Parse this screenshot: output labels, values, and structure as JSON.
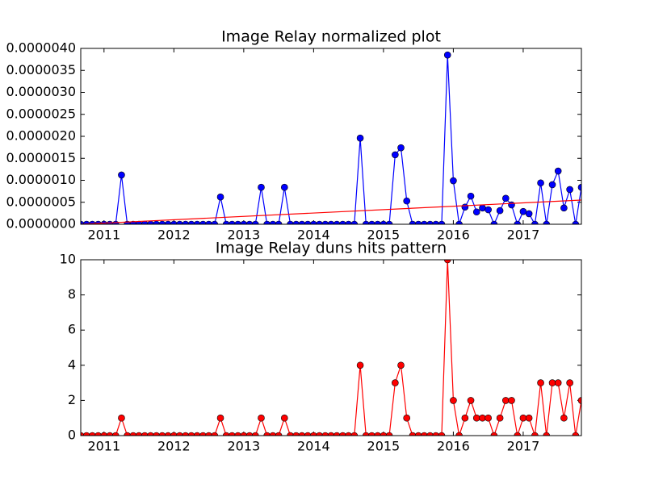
{
  "chart_data": [
    {
      "type": "line",
      "title": "Image Relay normalized plot",
      "x": [
        2010.667,
        2010.75,
        2010.833,
        2010.917,
        2011.0,
        2011.083,
        2011.167,
        2011.25,
        2011.333,
        2011.417,
        2011.5,
        2011.583,
        2011.667,
        2011.75,
        2011.833,
        2011.917,
        2012.0,
        2012.083,
        2012.167,
        2012.25,
        2012.333,
        2012.417,
        2012.5,
        2012.583,
        2012.667,
        2012.75,
        2012.833,
        2012.917,
        2013.0,
        2013.083,
        2013.167,
        2013.25,
        2013.333,
        2013.417,
        2013.5,
        2013.583,
        2013.667,
        2013.75,
        2013.833,
        2013.917,
        2014.0,
        2014.083,
        2014.167,
        2014.25,
        2014.333,
        2014.417,
        2014.5,
        2014.583,
        2014.667,
        2014.75,
        2014.833,
        2014.917,
        2015.0,
        2015.083,
        2015.167,
        2015.25,
        2015.333,
        2015.417,
        2015.5,
        2015.583,
        2015.667,
        2015.75,
        2015.833,
        2015.917,
        2016.0,
        2016.083,
        2016.167,
        2016.25,
        2016.333,
        2016.417,
        2016.5,
        2016.583,
        2016.667,
        2016.75,
        2016.833,
        2016.917,
        2017.0,
        2017.083,
        2017.167,
        2017.25,
        2017.333,
        2017.417,
        2017.5,
        2017.583,
        2017.667,
        2017.75,
        2017.833
      ],
      "series": [
        {
          "color": "#0000ff",
          "markers": true,
          "values": [
            0,
            0,
            0,
            0,
            0,
            0,
            0,
            1.12e-06,
            0,
            0,
            0,
            0,
            0,
            0,
            0,
            0,
            0,
            0,
            0,
            0,
            0,
            0,
            0,
            0,
            6.2e-07,
            0,
            0,
            0,
            0,
            0,
            0,
            8.4e-07,
            0,
            0,
            0,
            8.4e-07,
            0,
            0,
            0,
            0,
            0,
            0,
            0,
            0,
            0,
            0,
            0,
            0,
            1.96e-06,
            0,
            0,
            0,
            0,
            0,
            1.58e-06,
            1.74e-06,
            5.3e-07,
            0,
            0,
            0,
            0,
            0,
            0,
            3.85e-06,
            9.9e-07,
            0,
            3.9e-07,
            6.4e-07,
            2.8e-07,
            3.7e-07,
            3.3e-07,
            0,
            3.1e-07,
            5.9e-07,
            4.4e-07,
            0,
            2.9e-07,
            2.4e-07,
            0,
            9.4e-07,
            0,
            9e-07,
            1.21e-06,
            3.7e-07,
            7.9e-07,
            0,
            8.4e-07
          ]
        },
        {
          "color": "#ff0000",
          "markers": false,
          "x": [
            2010.667,
            2017.833
          ],
          "values": [
            0,
            5.5e-07
          ]
        }
      ],
      "xlim": [
        2010.667,
        2017.833
      ],
      "xticks": [
        2011,
        2012,
        2013,
        2014,
        2015,
        2016,
        2017
      ],
      "ylim": [
        0,
        4e-06
      ],
      "yticks": [
        {
          "value": 0,
          "label": "0.0000000"
        },
        {
          "value": 5e-07,
          "label": "0.0000005"
        },
        {
          "value": 1e-06,
          "label": "0.0000010"
        },
        {
          "value": 1.5e-06,
          "label": "0.0000015"
        },
        {
          "value": 2e-06,
          "label": "0.0000020"
        },
        {
          "value": 2.5e-06,
          "label": "0.0000025"
        },
        {
          "value": 3e-06,
          "label": "0.0000030"
        },
        {
          "value": 3.5e-06,
          "label": "0.0000035"
        },
        {
          "value": 4e-06,
          "label": "0.0000040"
        }
      ]
    },
    {
      "type": "line",
      "title": "Image Relay duns hits pattern",
      "x": [
        2010.667,
        2010.75,
        2010.833,
        2010.917,
        2011.0,
        2011.083,
        2011.167,
        2011.25,
        2011.333,
        2011.417,
        2011.5,
        2011.583,
        2011.667,
        2011.75,
        2011.833,
        2011.917,
        2012.0,
        2012.083,
        2012.167,
        2012.25,
        2012.333,
        2012.417,
        2012.5,
        2012.583,
        2012.667,
        2012.75,
        2012.833,
        2012.917,
        2013.0,
        2013.083,
        2013.167,
        2013.25,
        2013.333,
        2013.417,
        2013.5,
        2013.583,
        2013.667,
        2013.75,
        2013.833,
        2013.917,
        2014.0,
        2014.083,
        2014.167,
        2014.25,
        2014.333,
        2014.417,
        2014.5,
        2014.583,
        2014.667,
        2014.75,
        2014.833,
        2014.917,
        2015.0,
        2015.083,
        2015.167,
        2015.25,
        2015.333,
        2015.417,
        2015.5,
        2015.583,
        2015.667,
        2015.75,
        2015.833,
        2015.917,
        2016.0,
        2016.083,
        2016.167,
        2016.25,
        2016.333,
        2016.417,
        2016.5,
        2016.583,
        2016.667,
        2016.75,
        2016.833,
        2016.917,
        2017.0,
        2017.083,
        2017.167,
        2017.25,
        2017.333,
        2017.417,
        2017.5,
        2017.583,
        2017.667,
        2017.75,
        2017.833
      ],
      "series": [
        {
          "color": "#ff0000",
          "markers": true,
          "values": [
            0,
            0,
            0,
            0,
            0,
            0,
            0,
            1,
            0,
            0,
            0,
            0,
            0,
            0,
            0,
            0,
            0,
            0,
            0,
            0,
            0,
            0,
            0,
            0,
            1,
            0,
            0,
            0,
            0,
            0,
            0,
            1,
            0,
            0,
            0,
            1,
            0,
            0,
            0,
            0,
            0,
            0,
            0,
            0,
            0,
            0,
            0,
            0,
            4,
            0,
            0,
            0,
            0,
            0,
            3,
            4,
            1,
            0,
            0,
            0,
            0,
            0,
            0,
            10,
            2,
            0,
            1,
            2,
            1,
            1,
            1,
            0,
            1,
            2,
            2,
            0,
            1,
            1,
            0,
            3,
            0,
            3,
            3,
            1,
            3,
            0,
            2
          ]
        }
      ],
      "xlim": [
        2010.667,
        2017.833
      ],
      "xticks": [
        2011,
        2012,
        2013,
        2014,
        2015,
        2016,
        2017
      ],
      "ylim": [
        0,
        10
      ],
      "yticks": [
        0,
        2,
        4,
        6,
        8,
        10
      ]
    }
  ]
}
